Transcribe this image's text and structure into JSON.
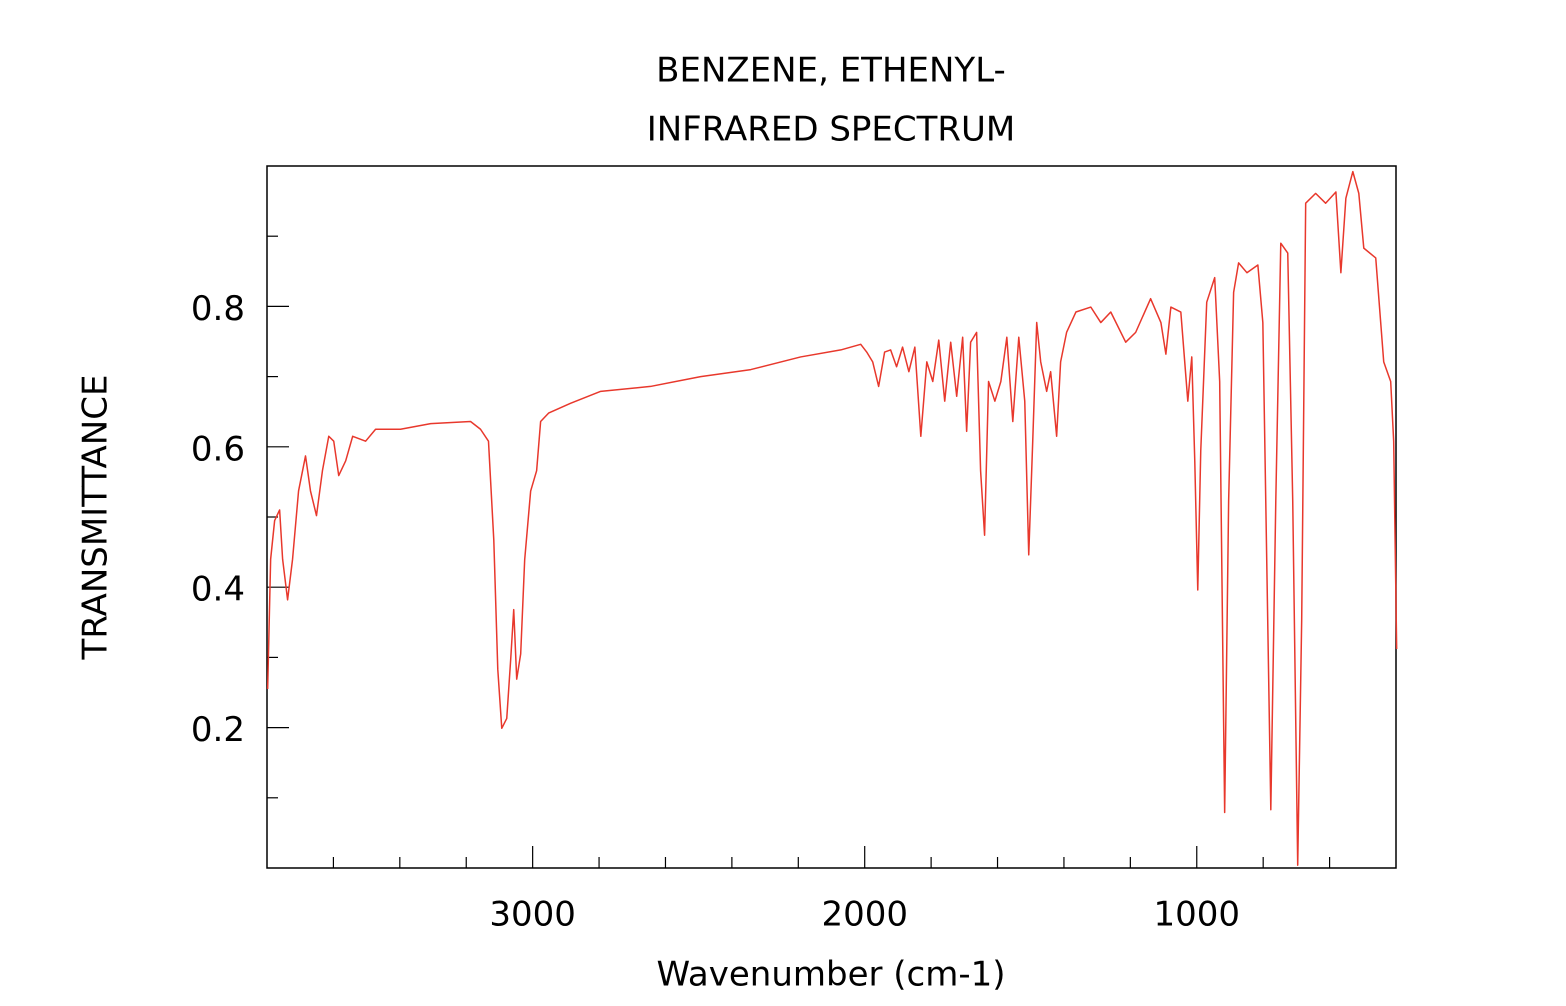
{
  "chart_data": {
    "type": "line",
    "title": "BENZENE, ETHENYL-",
    "subtitle": "INFRARED SPECTRUM",
    "xlabel": "Wavenumber (cm-1)",
    "ylabel": "TRANSMITTANCE",
    "xlim": [
      3800,
      400
    ],
    "ylim": [
      0,
      1
    ],
    "xticks": [
      3000,
      2000,
      1000
    ],
    "xminorticks": [
      3600,
      3400,
      3200,
      2800,
      2600,
      2400,
      2200,
      1800,
      1600,
      1400,
      1200,
      800,
      600
    ],
    "yticks": [
      0.2,
      0.4,
      0.6,
      0.8
    ],
    "yminorticks": [
      0.1,
      0.3,
      0.5,
      0.7,
      0.9
    ],
    "series": [
      {
        "name": "BENZENE, ETHENYL-",
        "color": "#e8382c",
        "x": [
          3798,
          3789,
          3777,
          3762,
          3753,
          3738,
          3723,
          3705,
          3684,
          3669,
          3651,
          3633,
          3614,
          3599,
          3584,
          3563,
          3542,
          3503,
          3473,
          3398,
          3307,
          3187,
          3157,
          3133,
          3117,
          3105,
          3093,
          3078,
          3066,
          3057,
          3048,
          3036,
          3024,
          3006,
          2988,
          2976,
          2952,
          2886,
          2795,
          2645,
          2494,
          2343,
          2193,
          2072,
          2012,
          1994,
          1976,
          1958,
          1940,
          1922,
          1904,
          1886,
          1867,
          1849,
          1831,
          1813,
          1795,
          1777,
          1759,
          1741,
          1723,
          1705,
          1693,
          1681,
          1663,
          1651,
          1639,
          1627,
          1608,
          1590,
          1572,
          1554,
          1536,
          1518,
          1506,
          1494,
          1482,
          1470,
          1452,
          1440,
          1422,
          1410,
          1392,
          1364,
          1319,
          1289,
          1259,
          1214,
          1184,
          1139,
          1108,
          1093,
          1078,
          1048,
          1027,
          1015,
          1006,
          997,
          988,
          970,
          946,
          931,
          916,
          904,
          889,
          874,
          849,
          816,
          801,
          777,
          762,
          747,
          726,
          711,
          696,
          684,
          672,
          642,
          612,
          581,
          566,
          551,
          530,
          512,
          497,
          461,
          437,
          416,
          407,
          398
        ],
        "values": [
          0.255,
          0.44,
          0.495,
          0.51,
          0.44,
          0.382,
          0.44,
          0.537,
          0.587,
          0.537,
          0.502,
          0.566,
          0.615,
          0.608,
          0.559,
          0.58,
          0.615,
          0.608,
          0.625,
          0.625,
          0.633,
          0.636,
          0.625,
          0.608,
          0.467,
          0.283,
          0.199,
          0.213,
          0.298,
          0.368,
          0.269,
          0.305,
          0.439,
          0.537,
          0.566,
          0.636,
          0.648,
          0.662,
          0.679,
          0.686,
          0.7,
          0.71,
          0.728,
          0.738,
          0.746,
          0.735,
          0.721,
          0.686,
          0.735,
          0.738,
          0.714,
          0.742,
          0.707,
          0.742,
          0.615,
          0.721,
          0.693,
          0.752,
          0.665,
          0.749,
          0.672,
          0.756,
          0.622,
          0.749,
          0.763,
          0.566,
          0.474,
          0.693,
          0.665,
          0.693,
          0.756,
          0.636,
          0.756,
          0.665,
          0.446,
          0.608,
          0.777,
          0.721,
          0.679,
          0.707,
          0.615,
          0.721,
          0.763,
          0.792,
          0.799,
          0.777,
          0.792,
          0.749,
          0.763,
          0.811,
          0.777,
          0.732,
          0.799,
          0.792,
          0.665,
          0.728,
          0.58,
          0.396,
          0.594,
          0.806,
          0.841,
          0.693,
          0.079,
          0.523,
          0.82,
          0.862,
          0.848,
          0.859,
          0.777,
          0.083,
          0.523,
          0.89,
          0.876,
          0.523,
          0.004,
          0.354,
          0.947,
          0.961,
          0.947,
          0.963,
          0.848,
          0.954,
          0.992,
          0.961,
          0.883,
          0.869,
          0.721,
          0.693,
          0.608,
          0.312
        ]
      }
    ]
  }
}
